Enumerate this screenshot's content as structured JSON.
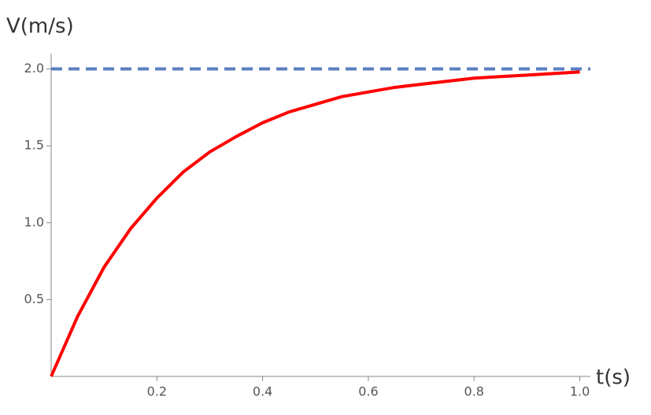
{
  "chart_data": {
    "type": "line",
    "x_label": "t(s)",
    "y_label": "V(m/s)",
    "x": [
      0,
      0.05,
      0.1,
      0.15,
      0.2,
      0.25,
      0.3,
      0.35,
      0.4,
      0.45,
      0.5,
      0.55,
      0.6,
      0.65,
      0.7,
      0.75,
      0.8,
      0.85,
      0.9,
      0.95,
      1.0
    ],
    "series": [
      {
        "color": "#ff0000",
        "values": [
          0,
          0.39,
          0.71,
          0.96,
          1.16,
          1.33,
          1.46,
          1.56,
          1.65,
          1.72,
          1.77,
          1.82,
          1.85,
          1.88,
          1.9,
          1.92,
          1.94,
          1.95,
          1.96,
          1.97,
          1.98
        ]
      }
    ],
    "hline": {
      "value": 2,
      "color": "#5b7fc0",
      "dashed": true
    },
    "xlim": [
      0,
      1.02
    ],
    "ylim": [
      0,
      2.1
    ],
    "xticks": [
      0.2,
      0.4,
      0.6,
      0.8,
      {
        "value": 1,
        "label": "1.0"
      }
    ],
    "yticks": [
      0.5,
      {
        "value": 1,
        "label": "1.0"
      },
      1.5,
      {
        "value": 2,
        "label": "2.0"
      }
    ],
    "grid": false
  }
}
